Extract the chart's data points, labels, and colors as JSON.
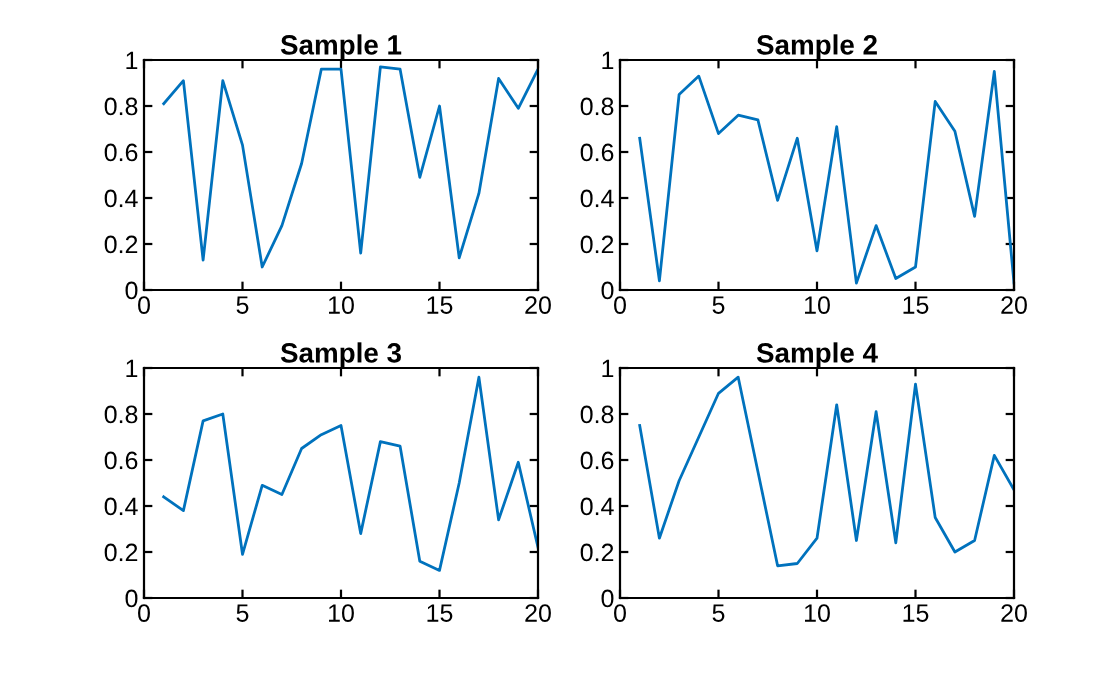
{
  "chart_data": [
    {
      "type": "line",
      "title": "Sample 1",
      "x": [
        1,
        2,
        3,
        4,
        5,
        6,
        7,
        8,
        9,
        10,
        11,
        12,
        13,
        14,
        15,
        16,
        17,
        18,
        19,
        20
      ],
      "series": [
        {
          "color": "#0072bd",
          "values": [
            0.81,
            0.91,
            0.13,
            0.91,
            0.63,
            0.1,
            0.28,
            0.55,
            0.96,
            0.96,
            0.16,
            0.97,
            0.96,
            0.49,
            0.8,
            0.14,
            0.42,
            0.92,
            0.79,
            0.96
          ]
        }
      ],
      "xlim": [
        0,
        20
      ],
      "xticks": [
        0,
        5,
        10,
        15,
        20
      ],
      "ylim": [
        0,
        1
      ],
      "yticks": [
        0,
        {
          "value": 0.2,
          "label": "0.2"
        },
        {
          "value": 0.4,
          "label": "0.4"
        },
        {
          "value": 0.6,
          "label": "0.6"
        },
        {
          "value": 0.8,
          "label": "0.8"
        },
        1
      ],
      "grid": false,
      "legend": false
    },
    {
      "type": "line",
      "title": "Sample 2",
      "x": [
        1,
        2,
        3,
        4,
        5,
        6,
        7,
        8,
        9,
        10,
        11,
        12,
        13,
        14,
        15,
        16,
        17,
        18,
        19,
        20
      ],
      "series": [
        {
          "color": "#0072bd",
          "values": [
            0.66,
            0.04,
            0.85,
            0.93,
            0.68,
            0.76,
            0.74,
            0.39,
            0.66,
            0.17,
            0.71,
            0.03,
            0.28,
            0.05,
            0.1,
            0.82,
            0.69,
            0.32,
            0.95,
            0.03
          ]
        }
      ],
      "xlim": [
        0,
        20
      ],
      "xticks": [
        0,
        5,
        10,
        15,
        20
      ],
      "ylim": [
        0,
        1
      ],
      "yticks": [
        0,
        {
          "value": 0.2,
          "label": "0.2"
        },
        {
          "value": 0.4,
          "label": "0.4"
        },
        {
          "value": 0.6,
          "label": "0.6"
        },
        {
          "value": 0.8,
          "label": "0.8"
        },
        1
      ],
      "grid": false,
      "legend": false
    },
    {
      "type": "line",
      "title": "Sample 3",
      "x": [
        1,
        2,
        3,
        4,
        5,
        6,
        7,
        8,
        9,
        10,
        11,
        12,
        13,
        14,
        15,
        16,
        17,
        18,
        19,
        20
      ],
      "series": [
        {
          "color": "#0072bd",
          "values": [
            0.44,
            0.38,
            0.77,
            0.8,
            0.19,
            0.49,
            0.45,
            0.65,
            0.71,
            0.75,
            0.28,
            0.68,
            0.66,
            0.16,
            0.12,
            0.5,
            0.96,
            0.34,
            0.59,
            0.22
          ]
        }
      ],
      "xlim": [
        0,
        20
      ],
      "xticks": [
        0,
        5,
        10,
        15,
        20
      ],
      "ylim": [
        0,
        1
      ],
      "yticks": [
        0,
        {
          "value": 0.2,
          "label": "0.2"
        },
        {
          "value": 0.4,
          "label": "0.4"
        },
        {
          "value": 0.6,
          "label": "0.6"
        },
        {
          "value": 0.8,
          "label": "0.8"
        },
        1
      ],
      "grid": false,
      "legend": false
    },
    {
      "type": "line",
      "title": "Sample 4",
      "x": [
        1,
        2,
        3,
        4,
        5,
        6,
        7,
        8,
        9,
        10,
        11,
        12,
        13,
        14,
        15,
        16,
        17,
        18,
        19,
        20
      ],
      "series": [
        {
          "color": "#0072bd",
          "values": [
            0.75,
            0.26,
            0.51,
            0.7,
            0.89,
            0.96,
            0.55,
            0.14,
            0.15,
            0.26,
            0.84,
            0.25,
            0.81,
            0.24,
            0.93,
            0.35,
            0.2,
            0.25,
            0.62,
            0.47
          ]
        }
      ],
      "xlim": [
        0,
        20
      ],
      "xticks": [
        0,
        5,
        10,
        15,
        20
      ],
      "ylim": [
        0,
        1
      ],
      "yticks": [
        0,
        {
          "value": 0.2,
          "label": "0.2"
        },
        {
          "value": 0.4,
          "label": "0.4"
        },
        {
          "value": 0.6,
          "label": "0.6"
        },
        {
          "value": 0.8,
          "label": "0.8"
        },
        1
      ],
      "grid": false,
      "legend": false
    }
  ]
}
